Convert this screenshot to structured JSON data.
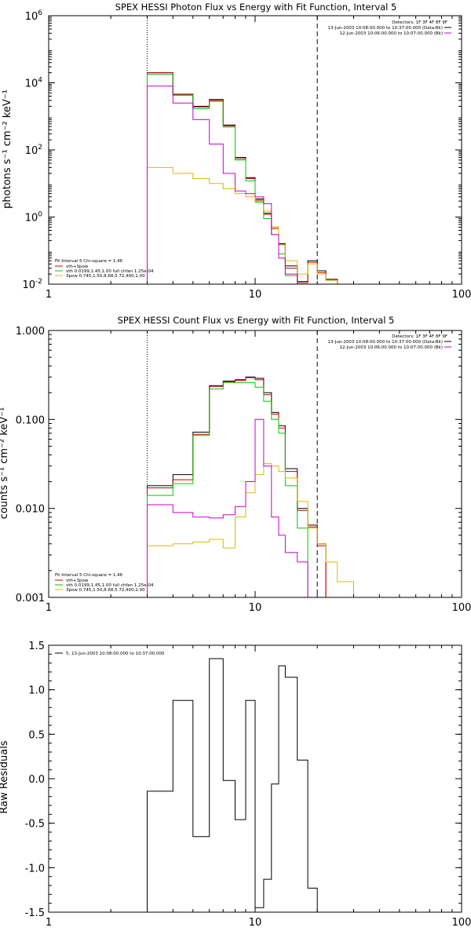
{
  "chart_data": [
    {
      "type": "line",
      "title": "SPEX HESSI Photon Flux vs Energy with Fit Function, Interval 5",
      "xlabel": "",
      "ylabel": "photons s⁻¹ cm⁻² keV⁻¹",
      "xscale": "log",
      "yscale": "log",
      "xlim": [
        1,
        100
      ],
      "ylim": [
        0.01,
        1000000
      ],
      "x_ticks": [
        "1",
        "10",
        "100"
      ],
      "y_ticks": [
        {
          "v": 0.01,
          "mant": "10",
          "exp": "-2"
        },
        {
          "v": 1,
          "mant": "10",
          "exp": "0"
        },
        {
          "v": 100,
          "mant": "10",
          "exp": "2"
        },
        {
          "v": 10000,
          "mant": "10",
          "exp": "4"
        },
        {
          "v": 1000000,
          "mant": "10",
          "exp": "6"
        }
      ],
      "step": true,
      "bin_edges": [
        3,
        4,
        5,
        6,
        7,
        8,
        9,
        10,
        11,
        12,
        13,
        14,
        16,
        18,
        20,
        22,
        25,
        30
      ],
      "vlines": [
        {
          "x": 3,
          "style": "dotted"
        },
        {
          "x": 20,
          "style": "dashed"
        }
      ],
      "legend_topright": {
        "header": "Detectors: 1F 3F 4F 8F 9F",
        "lines": [
          {
            "text": "13-Jun-2003 10:08:00.000 to 10:37:00.000 (Data-Bk)",
            "color": "#000000"
          },
          {
            "text": "12-Jun-2003 10:06:00.000 to 10:07:00.000 (Bk)",
            "color": "#cc00cc"
          }
        ]
      },
      "legend_bottomleft": {
        "header": "Fit Interval 5   Chi-square = 1.46",
        "lines": [
          {
            "text": "vth+3pow",
            "color": "#cc0000"
          },
          {
            "text": "vth 0.0199,1.45,1.00  full chfan 1.25e-04",
            "color": "#00cc00"
          },
          {
            "text": "3pow 0.745,1.50,8.68,5.72,400,1.00",
            "color": "#ddbb00"
          }
        ]
      },
      "series": [
        {
          "name": "Data-Bk",
          "color": "#000000",
          "values": [
            20000,
            4500,
            2000,
            3200,
            550,
            60,
            15,
            3.5,
            1.3,
            0.5,
            0.16,
            0.035,
            0.012,
            0.05,
            0.025,
            0.014,
            0.01
          ]
        },
        {
          "name": "vth+3pow",
          "color": "#cc0000",
          "values": [
            20000,
            4600,
            1900,
            3000,
            520,
            55,
            14,
            3.2,
            1.2,
            0.45,
            0.15,
            0.03,
            0.011,
            0.045,
            0.022,
            0.013,
            0.009
          ]
        },
        {
          "name": "vth",
          "color": "#00cc00",
          "values": [
            18000,
            4200,
            1700,
            2800,
            480,
            50,
            12,
            2.8,
            0.9,
            0.3,
            0.08,
            0.018,
            0.005,
            null,
            null,
            null,
            null
          ]
        },
        {
          "name": "3pow",
          "color": "#ddbb00",
          "values": [
            30,
            20,
            14,
            10,
            7,
            5,
            4,
            3,
            1.5,
            0.5,
            0.15,
            0.05,
            0.02,
            0.04,
            0.02,
            0.013,
            0.009
          ]
        },
        {
          "name": "Bk",
          "color": "#cc00cc",
          "values": [
            8000,
            2500,
            800,
            150,
            20,
            6,
            5,
            4,
            2.5,
            0.3,
            0.06,
            0.02,
            null,
            null,
            null,
            null,
            null
          ]
        }
      ]
    },
    {
      "type": "line",
      "title": "SPEX HESSI Count Flux vs Energy with Fit Function, Interval 5",
      "xlabel": "",
      "ylabel": "counts s⁻¹ cm⁻² keV⁻¹",
      "xscale": "log",
      "yscale": "log",
      "xlim": [
        1,
        100
      ],
      "ylim": [
        0.001,
        1.0
      ],
      "x_ticks": [
        "1",
        "10",
        "100"
      ],
      "y_ticks": [
        {
          "v": 0.001,
          "label": "0.001"
        },
        {
          "v": 0.01,
          "label": "0.010"
        },
        {
          "v": 0.1,
          "label": "0.100"
        },
        {
          "v": 1.0,
          "label": "1.000"
        }
      ],
      "step": true,
      "bin_edges": [
        3,
        4,
        5,
        6,
        7,
        8,
        9,
        10,
        11,
        12,
        13,
        14,
        16,
        18,
        20,
        22,
        25,
        30
      ],
      "vlines": [
        {
          "x": 3,
          "style": "dotted"
        },
        {
          "x": 20,
          "style": "dashed"
        }
      ],
      "legend_topright": {
        "header": "Detectors: 1F 3F 4F 8F 9F",
        "lines": [
          {
            "text": "13-Jun-2003 10:08:00.000 to 10:37:00.000 (Data-Bk)",
            "color": "#000000"
          },
          {
            "text": "12-Jun-2003 10:06:00.000 to 10:07:00.000 (Bk)",
            "color": "#cc00cc"
          }
        ]
      },
      "legend_bottomleft": {
        "header": "Fit Interval 5   Chi-square = 1.46",
        "lines": [
          {
            "text": "vth+3pow",
            "color": "#cc0000"
          },
          {
            "text": "vth 0.0199,1.45,1.00  full chfan 1.25e-04",
            "color": "#00cc00"
          },
          {
            "text": "3pow 0.745,1.50,8.68,5.72,400,1.00",
            "color": "#ddbb00"
          }
        ]
      },
      "series": [
        {
          "name": "Data-Bk",
          "color": "#000000",
          "values": [
            0.018,
            0.024,
            0.072,
            0.24,
            0.27,
            0.28,
            0.3,
            0.29,
            0.2,
            0.12,
            0.085,
            0.028,
            0.01,
            0.0065,
            0.004,
            null,
            null
          ]
        },
        {
          "name": "vth+3pow",
          "color": "#cc0000",
          "values": [
            0.017,
            0.021,
            0.068,
            0.235,
            0.265,
            0.275,
            0.295,
            0.28,
            0.19,
            0.115,
            0.08,
            0.026,
            0.0095,
            0.0062,
            0.0038,
            null,
            null
          ]
        },
        {
          "name": "vth",
          "color": "#00cc00",
          "values": [
            0.014,
            0.019,
            0.066,
            0.22,
            0.26,
            0.26,
            0.26,
            0.23,
            0.16,
            0.1,
            0.07,
            0.018,
            0.006,
            null,
            null,
            null,
            null
          ]
        },
        {
          "name": "3pow",
          "color": "#ddbb00",
          "values": [
            0.0038,
            0.004,
            0.0042,
            0.0045,
            0.0036,
            0.008,
            0.015,
            0.024,
            0.032,
            0.03,
            0.026,
            0.022,
            0.012,
            0.006,
            0.004,
            0.0025,
            0.0015
          ]
        },
        {
          "name": "Bk",
          "color": "#cc00cc",
          "values": [
            0.011,
            0.009,
            0.008,
            0.0078,
            0.0085,
            0.0105,
            0.02,
            0.1,
            0.03,
            0.008,
            0.005,
            0.0032,
            0.0025,
            null,
            null,
            null,
            null
          ]
        }
      ]
    },
    {
      "type": "line",
      "title": "",
      "xlabel": "",
      "ylabel": "Raw Residuals",
      "xscale": "log",
      "yscale": "linear",
      "xlim": [
        1,
        100
      ],
      "ylim": [
        -1.5,
        1.5
      ],
      "x_ticks": [
        "1",
        "10",
        "100"
      ],
      "y_ticks": [
        {
          "v": 1.5,
          "label": "1.5"
        },
        {
          "v": 1.0,
          "label": "1.0"
        },
        {
          "v": 0.5,
          "label": "0.5"
        },
        {
          "v": 0.0,
          "label": "0.0"
        },
        {
          "v": -0.5,
          "label": "-0.5"
        },
        {
          "v": -1.0,
          "label": "-1.0"
        },
        {
          "v": -1.5,
          "label": "-1.5"
        }
      ],
      "step": true,
      "bin_edges": [
        3,
        4,
        5,
        6,
        7,
        8,
        9,
        10,
        11,
        12,
        13,
        14,
        16,
        18,
        20,
        22,
        25,
        30
      ],
      "legend_topleft": {
        "lines": [
          {
            "text": "5, 13-Jun-2003 10:08:00.000 to 10:37:00.000",
            "color": "#000000"
          }
        ]
      },
      "series": [
        {
          "name": "5, 13-Jun-2003 10:08:00.000 to 10:37:00.000",
          "color": "#000000",
          "values": [
            -0.14,
            0.88,
            -0.65,
            1.35,
            -0.02,
            -0.46,
            0.88,
            -1.45,
            -1.13,
            -0.06,
            1.27,
            1.14,
            0.21,
            -1.23,
            null,
            null,
            null
          ]
        }
      ]
    }
  ]
}
